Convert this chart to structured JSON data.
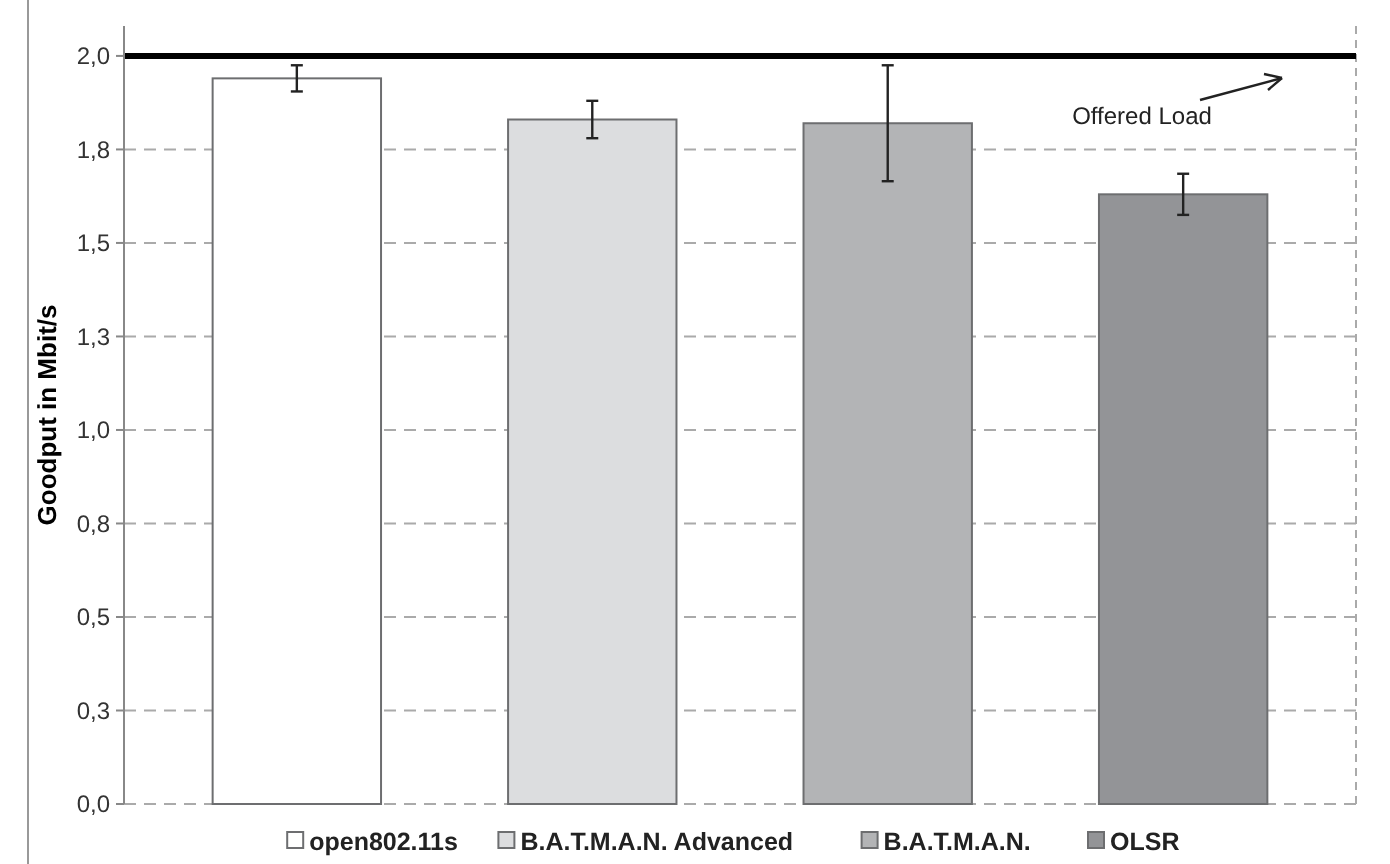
{
  "chart_data": {
    "type": "bar",
    "stacked": true,
    "ylabel": "Goodput in Mbit/s",
    "categories": [
      null,
      null,
      null,
      null
    ],
    "series": [
      {
        "name": "open802.11s",
        "color": "#ffffff",
        "values": [
          1.94,
          null,
          null,
          null
        ],
        "errors": [
          0.035,
          null,
          null,
          null
        ]
      },
      {
        "name": "B.A.T.M.A.N. Advanced",
        "color": "#dcdddf",
        "values": [
          null,
          1.83,
          null,
          null
        ],
        "errors": [
          null,
          0.05,
          null,
          null
        ]
      },
      {
        "name": "B.A.T.M.A.N.",
        "color": "#b3b4b6",
        "values": [
          null,
          null,
          1.82,
          null
        ],
        "errors": [
          null,
          null,
          0.155,
          null
        ]
      },
      {
        "name": "OLSR",
        "color": "#939497",
        "values": [
          null,
          null,
          null,
          1.63
        ],
        "errors": [
          null,
          null,
          null,
          0.055
        ]
      }
    ],
    "ylim": [
      0,
      2.08
    ],
    "yticks": [
      {
        "value": 0,
        "label": "0,0"
      },
      {
        "value": 0.25,
        "label": "0,3"
      },
      {
        "value": 0.5,
        "label": "0,5"
      },
      {
        "value": 0.75,
        "label": "0,8"
      },
      {
        "value": 1,
        "label": "1,0"
      },
      {
        "value": 1.25,
        "label": "1,3"
      },
      {
        "value": 1.5,
        "label": "1,5"
      },
      {
        "value": 1.75,
        "label": "1,8"
      },
      {
        "value": 2,
        "label": "2,0"
      }
    ],
    "grid": "y",
    "legend": "bottom",
    "ref_lines": [
      {
        "axis": "y",
        "value": 2,
        "label": "Offered Load",
        "color": "#000000",
        "line_style": "solid"
      }
    ]
  }
}
